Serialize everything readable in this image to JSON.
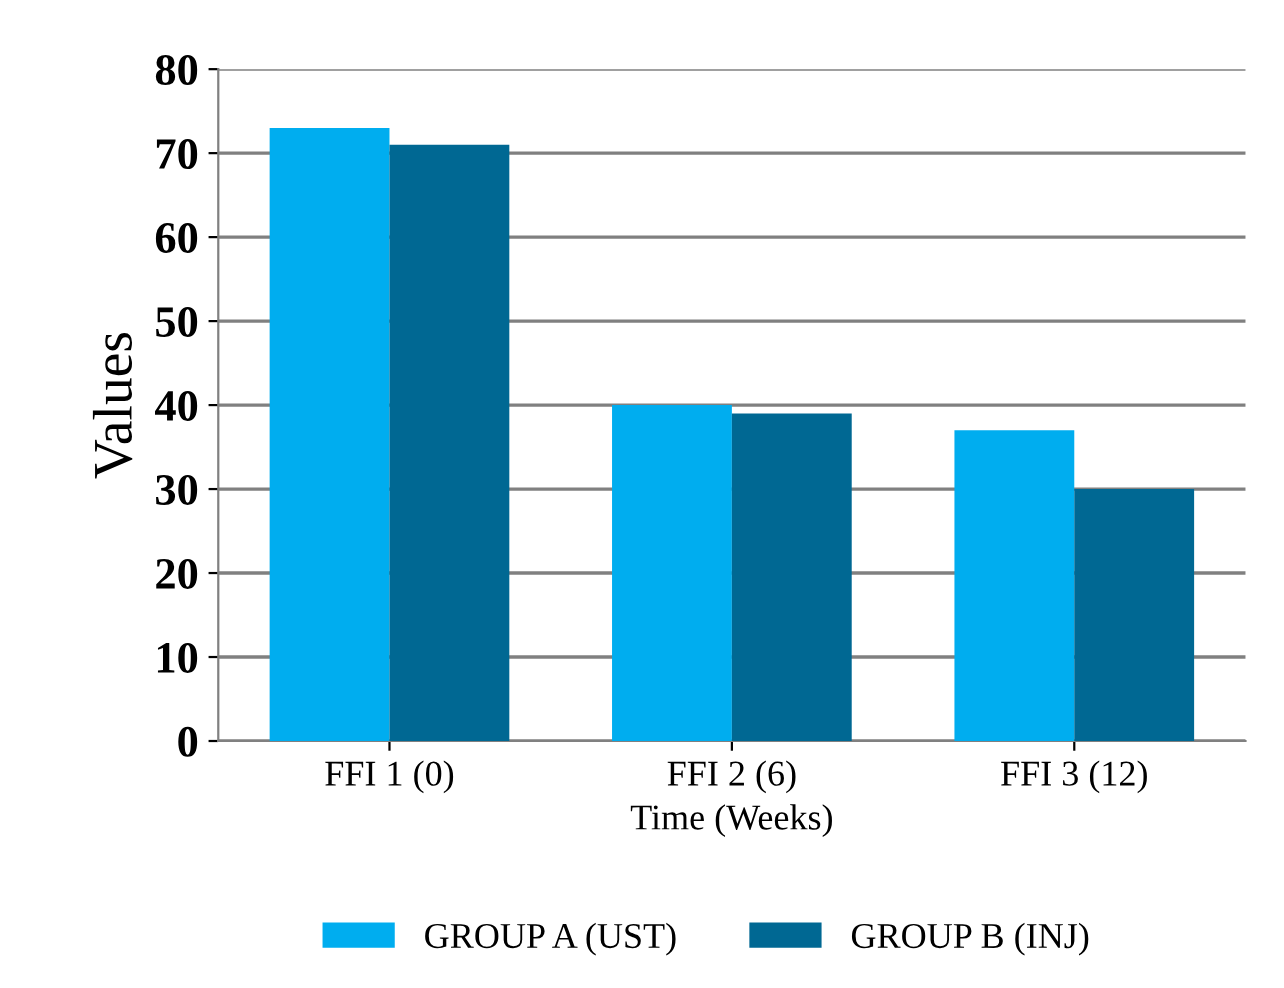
{
  "chart_data": {
    "type": "bar",
    "xlabel": "Time (Weeks)",
    "ylabel": "Values",
    "categories": [
      "FFI 1 (0)",
      "FFI 2 (6)",
      "FFI 3 (12)"
    ],
    "series": [
      {
        "name": "GROUP A (UST)",
        "color": "#00adef",
        "values": [
          73,
          40,
          37
        ]
      },
      {
        "name": "GROUP B (INJ)",
        "color": "#006893",
        "values": [
          71,
          39,
          30
        ]
      }
    ],
    "ylim": [
      0,
      80
    ],
    "yticks": [
      0,
      10,
      20,
      30,
      40,
      50,
      60,
      70,
      80
    ],
    "grid": "y",
    "legend": "bottom"
  }
}
